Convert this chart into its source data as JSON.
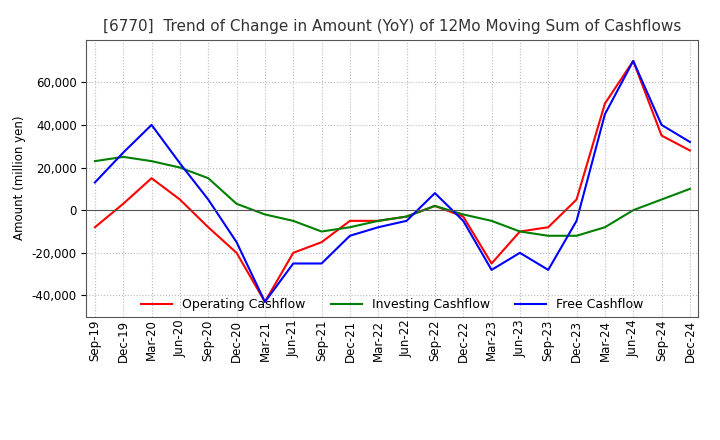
{
  "title": "[6770]  Trend of Change in Amount (YoY) of 12Mo Moving Sum of Cashflows",
  "ylabel": "Amount (million yen)",
  "x_labels": [
    "Sep-19",
    "Dec-19",
    "Mar-20",
    "Jun-20",
    "Sep-20",
    "Dec-20",
    "Mar-21",
    "Jun-21",
    "Sep-21",
    "Dec-21",
    "Mar-22",
    "Jun-22",
    "Sep-22",
    "Dec-22",
    "Mar-23",
    "Jun-23",
    "Sep-23",
    "Dec-23",
    "Mar-24",
    "Jun-24",
    "Sep-24",
    "Dec-24"
  ],
  "operating_cashflow": [
    -8000,
    3000,
    15000,
    5000,
    -8000,
    -20000,
    -43000,
    -20000,
    -15000,
    -5000,
    -5000,
    -3000,
    2000,
    -3000,
    -25000,
    -10000,
    -8000,
    5000,
    50000,
    70000,
    35000,
    28000
  ],
  "investing_cashflow": [
    23000,
    25000,
    23000,
    20000,
    15000,
    3000,
    -2000,
    -5000,
    -10000,
    -8000,
    -5000,
    -3000,
    2000,
    -2000,
    -5000,
    -10000,
    -12000,
    -12000,
    -8000,
    0,
    5000,
    10000
  ],
  "free_cashflow": [
    13000,
    27000,
    40000,
    22000,
    5000,
    -15000,
    -43000,
    -25000,
    -25000,
    -12000,
    -8000,
    -5000,
    8000,
    -5000,
    -28000,
    -20000,
    -28000,
    -5000,
    45000,
    70000,
    40000,
    32000
  ],
  "ylim": [
    -50000,
    80000
  ],
  "yticks": [
    -40000,
    -20000,
    0,
    20000,
    40000,
    60000
  ],
  "operating_color": "#ff0000",
  "investing_color": "#008000",
  "free_color": "#0000ff",
  "background_color": "#ffffff",
  "grid_color": "#bbbbbb",
  "title_fontsize": 11,
  "axis_fontsize": 8.5,
  "legend_fontsize": 9
}
